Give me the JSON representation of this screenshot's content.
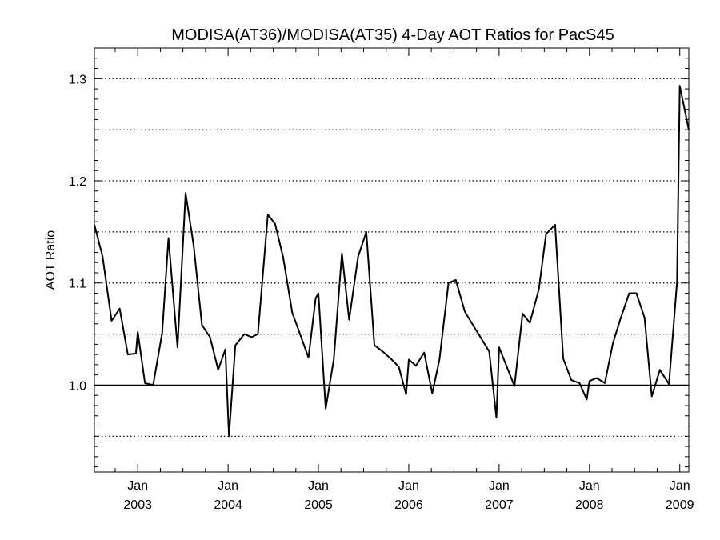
{
  "chart_data": {
    "type": "line",
    "title": "MODISA(AT36)/MODISA(AT35) 4-Day AOT Ratios for PacS45",
    "xlabel": "",
    "ylabel": "AOT Ratio",
    "xlim": [
      2002.52,
      2009.1
    ],
    "ylim": [
      0.915,
      1.33
    ],
    "grid": "horizontal dotted",
    "x_ticks": [
      {
        "month": "Jan",
        "year": "2003",
        "x": 2003.0
      },
      {
        "month": "Jan",
        "year": "2004",
        "x": 2004.0
      },
      {
        "month": "Jan",
        "year": "2005",
        "x": 2005.0
      },
      {
        "month": "Jan",
        "year": "2006",
        "x": 2006.0
      },
      {
        "month": "Jan",
        "year": "2007",
        "x": 2007.0
      },
      {
        "month": "Jan",
        "year": "2008",
        "x": 2008.0
      },
      {
        "month": "Jan",
        "year": "2009",
        "x": 2009.0
      }
    ],
    "y_ticks": [
      {
        "label": "1.0",
        "value": 1.0
      },
      {
        "label": "1.1",
        "value": 1.1
      },
      {
        "label": "1.2",
        "value": 1.2
      },
      {
        "label": "1.3",
        "value": 1.3
      }
    ],
    "gridlines": [
      0.95,
      1.05,
      1.1,
      1.15,
      1.2,
      1.25,
      1.3
    ],
    "reference_line": 1.0,
    "series": [
      {
        "color": "#000000",
        "points": [
          [
            2002.52,
            1.157
          ],
          [
            2002.61,
            1.126
          ],
          [
            2002.71,
            1.063
          ],
          [
            2002.8,
            1.075
          ],
          [
            2002.89,
            1.03
          ],
          [
            2002.98,
            1.031
          ],
          [
            2003.0,
            1.052
          ],
          [
            2003.08,
            1.002
          ],
          [
            2003.17,
            1.0
          ],
          [
            2003.27,
            1.051
          ],
          [
            2003.34,
            1.144
          ],
          [
            2003.44,
            1.037
          ],
          [
            2003.53,
            1.188
          ],
          [
            2003.62,
            1.136
          ],
          [
            2003.71,
            1.059
          ],
          [
            2003.8,
            1.047
          ],
          [
            2003.89,
            1.015
          ],
          [
            2003.97,
            1.035
          ],
          [
            2004.01,
            0.95
          ],
          [
            2004.08,
            1.039
          ],
          [
            2004.18,
            1.05
          ],
          [
            2004.26,
            1.047
          ],
          [
            2004.33,
            1.05
          ],
          [
            2004.44,
            1.167
          ],
          [
            2004.52,
            1.158
          ],
          [
            2004.61,
            1.125
          ],
          [
            2004.71,
            1.071
          ],
          [
            2004.8,
            1.049
          ],
          [
            2004.89,
            1.027
          ],
          [
            2004.97,
            1.085
          ],
          [
            2005.0,
            1.09
          ],
          [
            2005.08,
            0.977
          ],
          [
            2005.17,
            1.025
          ],
          [
            2005.26,
            1.129
          ],
          [
            2005.34,
            1.064
          ],
          [
            2005.44,
            1.126
          ],
          [
            2005.53,
            1.15
          ],
          [
            2005.62,
            1.039
          ],
          [
            2005.71,
            1.033
          ],
          [
            2005.8,
            1.026
          ],
          [
            2005.89,
            1.018
          ],
          [
            2005.97,
            0.991
          ],
          [
            2006.0,
            1.025
          ],
          [
            2006.08,
            1.019
          ],
          [
            2006.17,
            1.032
          ],
          [
            2006.26,
            0.992
          ],
          [
            2006.34,
            1.025
          ],
          [
            2006.44,
            1.1
          ],
          [
            2006.52,
            1.103
          ],
          [
            2006.62,
            1.072
          ],
          [
            2006.71,
            1.059
          ],
          [
            2006.8,
            1.046
          ],
          [
            2006.89,
            1.033
          ],
          [
            2006.97,
            0.968
          ],
          [
            2007.0,
            1.037
          ],
          [
            2007.09,
            1.017
          ],
          [
            2007.17,
            0.999
          ],
          [
            2007.26,
            1.07
          ],
          [
            2007.34,
            1.061
          ],
          [
            2007.44,
            1.094
          ],
          [
            2007.52,
            1.148
          ],
          [
            2007.62,
            1.157
          ],
          [
            2007.71,
            1.026
          ],
          [
            2007.8,
            1.005
          ],
          [
            2007.89,
            1.002
          ],
          [
            2007.97,
            0.986
          ],
          [
            2008.0,
            1.004
          ],
          [
            2008.08,
            1.007
          ],
          [
            2008.17,
            1.002
          ],
          [
            2008.26,
            1.041
          ],
          [
            2008.34,
            1.064
          ],
          [
            2008.44,
            1.09
          ],
          [
            2008.52,
            1.09
          ],
          [
            2008.61,
            1.066
          ],
          [
            2008.69,
            0.989
          ],
          [
            2008.78,
            1.015
          ],
          [
            2008.88,
            1.001
          ],
          [
            2008.97,
            1.101
          ],
          [
            2009.0,
            1.293
          ],
          [
            2009.1,
            1.25
          ]
        ]
      }
    ]
  }
}
